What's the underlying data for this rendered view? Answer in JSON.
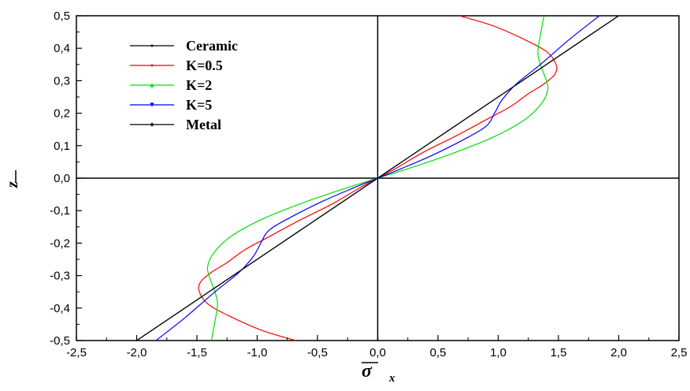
{
  "chart_data": {
    "type": "line",
    "title": "",
    "xlabel": "σ",
    "xlabel_sub": "x",
    "ylabel": "z",
    "xlim": [
      -2.5,
      2.5
    ],
    "ylim": [
      -0.5,
      0.5
    ],
    "x_ticks": [
      -2.5,
      -2.0,
      -1.5,
      -1.0,
      -0.5,
      0.0,
      0.5,
      1.0,
      1.5,
      2.0,
      2.5
    ],
    "y_ticks": [
      -0.5,
      -0.4,
      -0.3,
      -0.2,
      -0.1,
      0.0,
      0.1,
      0.2,
      0.3,
      0.4,
      0.5
    ],
    "x_tick_labels": [
      "-2,5",
      "-2,0",
      "-1,5",
      "-1,0",
      "-0,5",
      "0,0",
      "0,5",
      "1,0",
      "1,5",
      "2,0",
      "2,5"
    ],
    "y_tick_labels": [
      "-0,5",
      "-0,4",
      "-0,3",
      "-0,2",
      "-0,1",
      "0,0",
      "0,1",
      "0,2",
      "0,3",
      "0,4",
      "0,5"
    ],
    "grid": false,
    "legend_position": "top-left",
    "zero_lines": true,
    "series": [
      {
        "name": "Ceramic",
        "color": "#000000",
        "marker": "dot",
        "points": [
          [
            -2.0,
            -0.5
          ],
          [
            -1.0,
            -0.25
          ],
          [
            0.0,
            0.0
          ],
          [
            1.0,
            0.25
          ],
          [
            2.0,
            0.5
          ]
        ]
      },
      {
        "name": "K=0.5",
        "color": "#ff0000",
        "marker": "dot",
        "points": [
          [
            -0.68,
            -0.5
          ],
          [
            -0.95,
            -0.47
          ],
          [
            -1.2,
            -0.43
          ],
          [
            -1.4,
            -0.39
          ],
          [
            -1.48,
            -0.35
          ],
          [
            -1.47,
            -0.32
          ],
          [
            -1.38,
            -0.29
          ],
          [
            -1.25,
            -0.26
          ],
          [
            -1.1,
            -0.22
          ],
          [
            -0.9,
            -0.18
          ],
          [
            -0.65,
            -0.13
          ],
          [
            -0.38,
            -0.08
          ],
          [
            -0.15,
            -0.03
          ],
          [
            0.0,
            0.0
          ],
          [
            0.15,
            0.03
          ],
          [
            0.38,
            0.08
          ],
          [
            0.65,
            0.13
          ],
          [
            0.9,
            0.18
          ],
          [
            1.1,
            0.22
          ],
          [
            1.25,
            0.26
          ],
          [
            1.38,
            0.29
          ],
          [
            1.47,
            0.32
          ],
          [
            1.48,
            0.35
          ],
          [
            1.4,
            0.39
          ],
          [
            1.2,
            0.43
          ],
          [
            0.95,
            0.47
          ],
          [
            0.68,
            0.5
          ]
        ]
      },
      {
        "name": "K=2",
        "color": "#00e000",
        "marker": "triangle",
        "points": [
          [
            -1.38,
            -0.5
          ],
          [
            -1.36,
            -0.46
          ],
          [
            -1.34,
            -0.42
          ],
          [
            -1.33,
            -0.38
          ],
          [
            -1.36,
            -0.34
          ],
          [
            -1.4,
            -0.3
          ],
          [
            -1.41,
            -0.27
          ],
          [
            -1.36,
            -0.23
          ],
          [
            -1.22,
            -0.18
          ],
          [
            -0.98,
            -0.13
          ],
          [
            -0.65,
            -0.08
          ],
          [
            -0.3,
            -0.035
          ],
          [
            0.0,
            0.0
          ],
          [
            0.3,
            0.035
          ],
          [
            0.65,
            0.08
          ],
          [
            0.98,
            0.13
          ],
          [
            1.22,
            0.18
          ],
          [
            1.36,
            0.23
          ],
          [
            1.41,
            0.27
          ],
          [
            1.4,
            0.3
          ],
          [
            1.36,
            0.34
          ],
          [
            1.33,
            0.38
          ],
          [
            1.34,
            0.42
          ],
          [
            1.36,
            0.46
          ],
          [
            1.38,
            0.5
          ]
        ]
      },
      {
        "name": "K=5",
        "color": "#0000ff",
        "marker": "triangle-down",
        "points": [
          [
            -1.84,
            -0.5
          ],
          [
            -1.6,
            -0.43
          ],
          [
            -1.35,
            -0.35
          ],
          [
            -1.15,
            -0.29
          ],
          [
            -1.03,
            -0.24
          ],
          [
            -0.97,
            -0.2
          ],
          [
            -0.9,
            -0.16
          ],
          [
            -0.72,
            -0.12
          ],
          [
            -0.45,
            -0.07
          ],
          [
            -0.2,
            -0.03
          ],
          [
            0.0,
            0.0
          ],
          [
            0.2,
            0.03
          ],
          [
            0.45,
            0.07
          ],
          [
            0.72,
            0.12
          ],
          [
            0.9,
            0.16
          ],
          [
            0.97,
            0.2
          ],
          [
            1.03,
            0.24
          ],
          [
            1.15,
            0.29
          ],
          [
            1.35,
            0.35
          ],
          [
            1.6,
            0.43
          ],
          [
            1.84,
            0.5
          ]
        ]
      },
      {
        "name": "Metal",
        "color": "#000000",
        "marker": "diamond",
        "points": [
          [
            -2.0,
            -0.5
          ],
          [
            -1.0,
            -0.25
          ],
          [
            0.0,
            0.0
          ],
          [
            1.0,
            0.25
          ],
          [
            2.0,
            0.5
          ]
        ]
      }
    ]
  }
}
